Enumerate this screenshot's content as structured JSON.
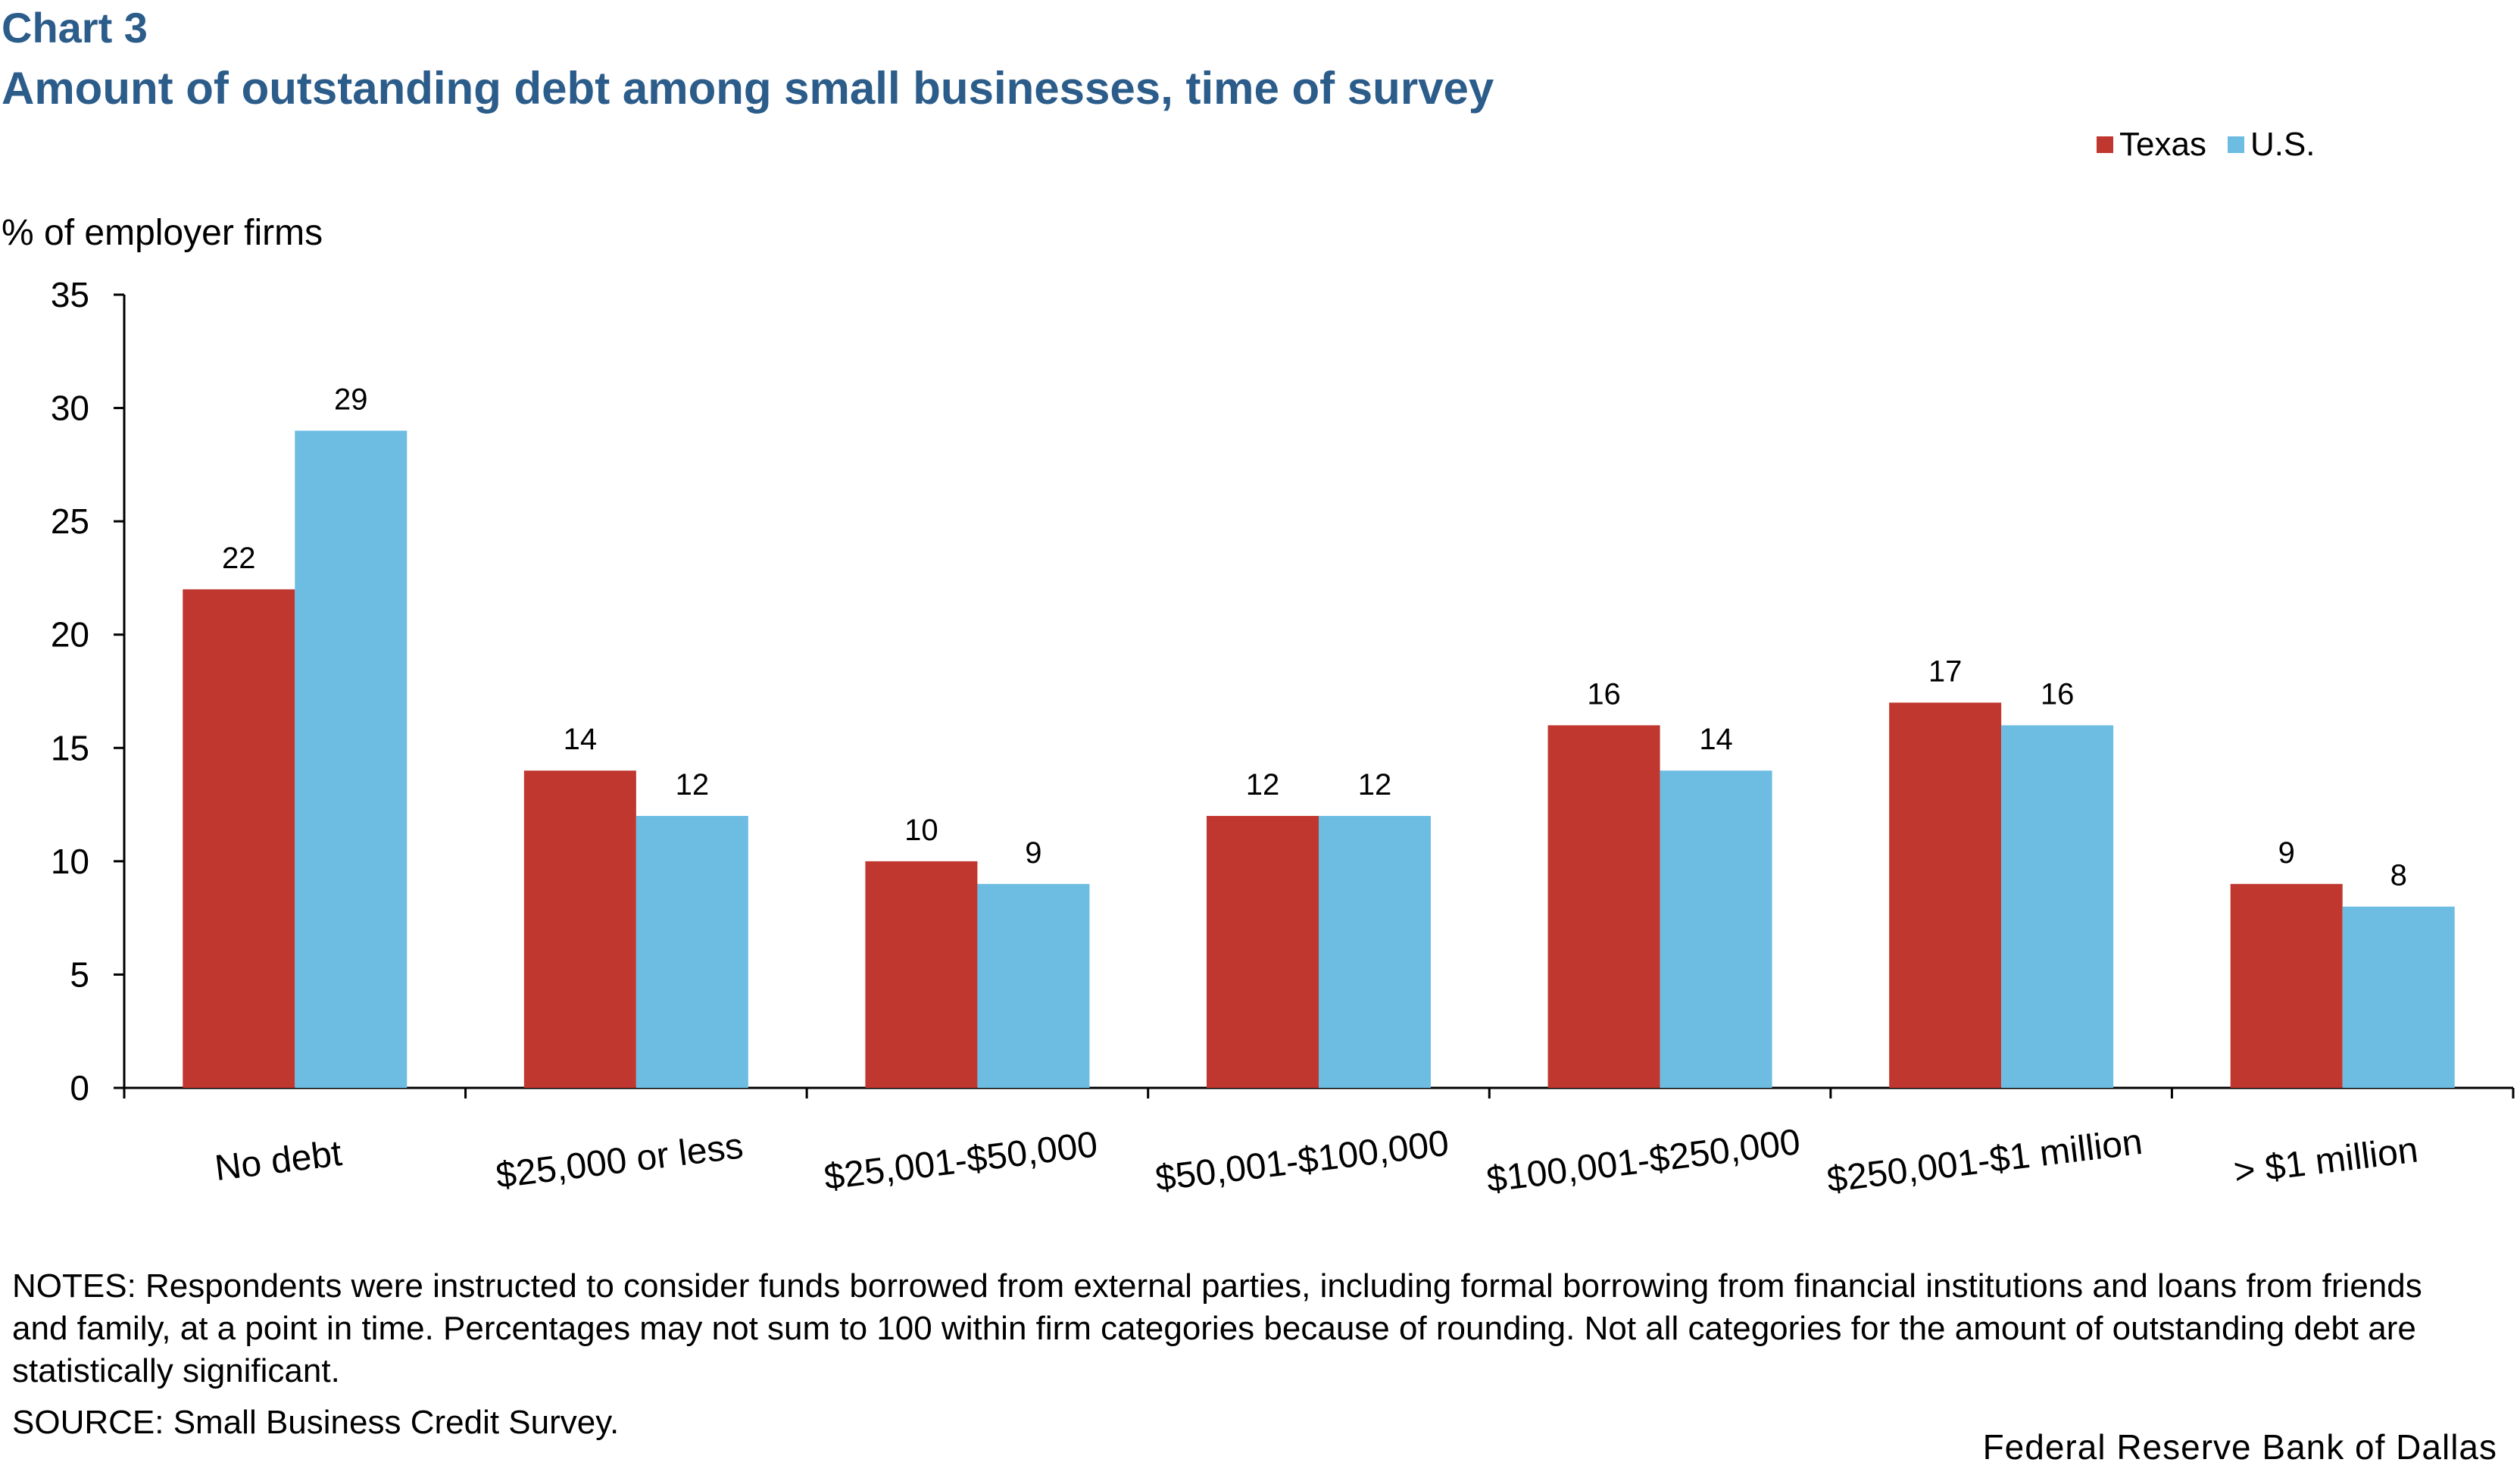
{
  "header": {
    "chart_number": "Chart 3",
    "title": "Amount of outstanding debt among small businesses, time of survey"
  },
  "colors": {
    "texas": "#c0372f",
    "us": "#6dbde2",
    "title": "#2b5c8a"
  },
  "chart_data": {
    "type": "bar",
    "title": "Amount of outstanding debt among small businesses, time of survey",
    "ylabel": "% of employer firms",
    "xlabel": "",
    "ylim": [
      0,
      35
    ],
    "yticks": [
      0,
      5,
      10,
      15,
      20,
      25,
      30,
      35
    ],
    "categories": [
      "No debt",
      "$25,000 or less",
      "$25,001-$50,000",
      "$50,001-$100,000",
      "$100,001-$250,000",
      "$250,001-$1 million",
      "> $1 million"
    ],
    "series": [
      {
        "name": "Texas",
        "color": "#c0372f",
        "values": [
          22,
          14,
          10,
          12,
          16,
          17,
          9
        ]
      },
      {
        "name": "U.S.",
        "color": "#6dbde2",
        "values": [
          29,
          12,
          9,
          12,
          14,
          16,
          8
        ]
      }
    ],
    "legend_position": "top-right",
    "grid": false
  },
  "footer": {
    "notes": "NOTES: Respondents were instructed to consider funds borrowed from external parties, including formal borrowing from financial institutions and loans from friends and family, at a point in time. Percentages may not sum to 100 within firm categories because of rounding. Not all categories for the amount of outstanding debt are statistically significant.",
    "source": "SOURCE: Small Business Credit Survey.",
    "credit": "Federal Reserve Bank of Dallas"
  }
}
